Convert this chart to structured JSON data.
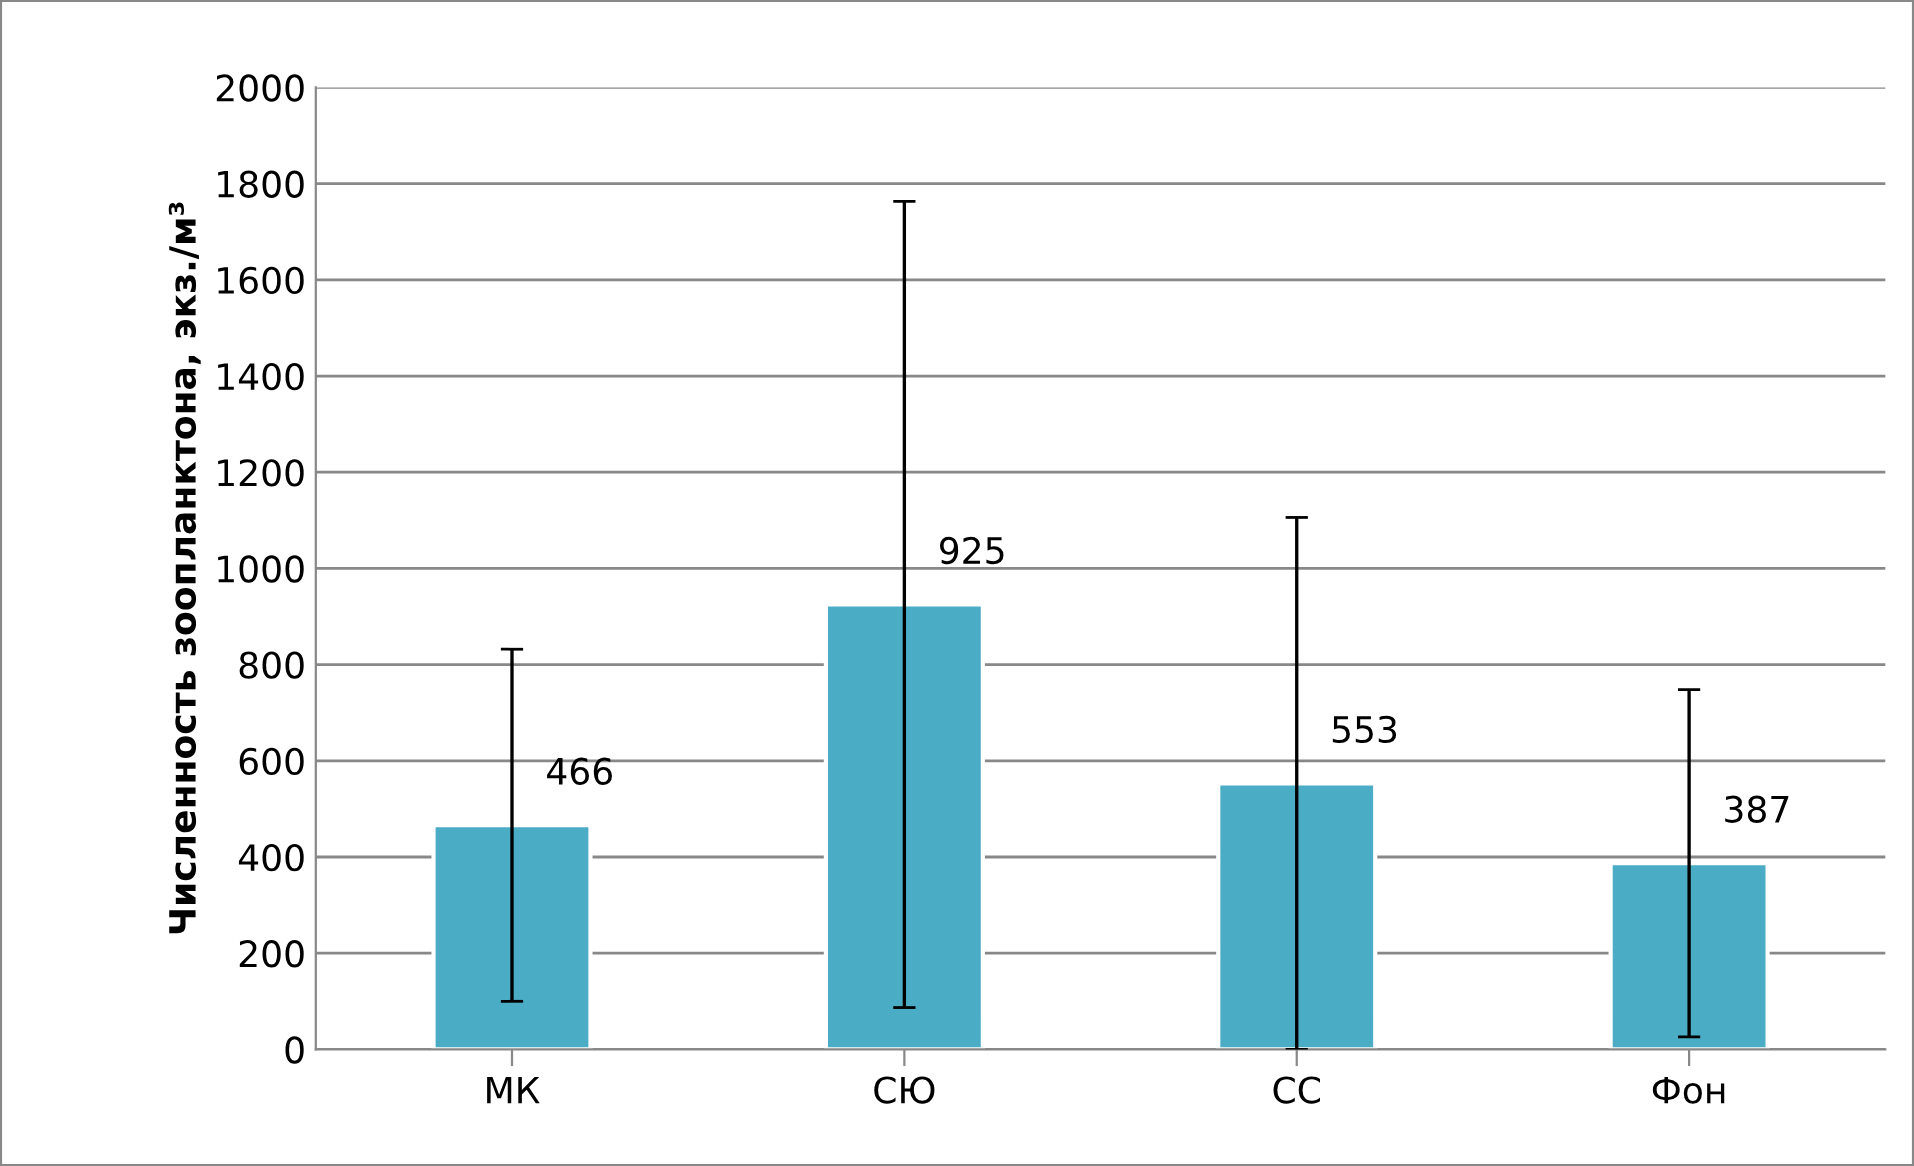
{
  "chart_data": {
    "type": "bar",
    "ylabel": "Численность зоопланктона, экз./м³",
    "categories": [
      "МК",
      "СЮ",
      "СС",
      "Фон"
    ],
    "values": [
      466,
      925,
      553,
      387
    ],
    "errors": [
      366,
      838,
      553,
      361
    ],
    "color": "#4bacc6",
    "ylim": [
      0,
      2000
    ],
    "yticks": [
      0,
      200,
      400,
      600,
      800,
      1000,
      1200,
      1400,
      1600,
      1800,
      2000
    ],
    "grid": "y",
    "data_labels": true,
    "legend": false
  }
}
